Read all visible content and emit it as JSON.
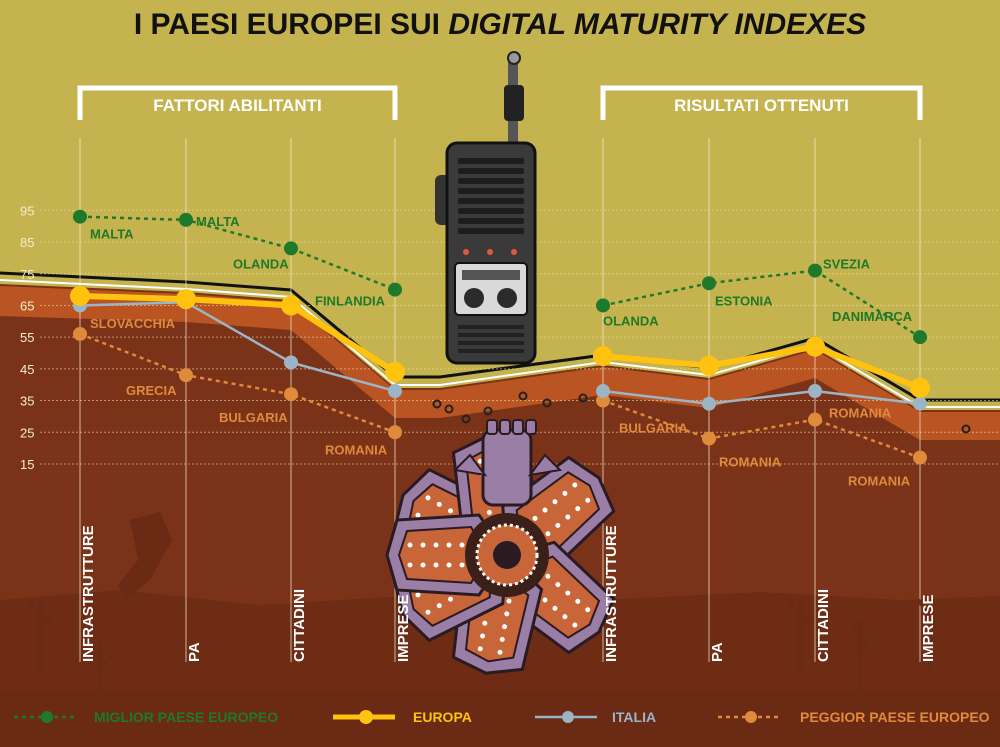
{
  "title_plain": "I PAESI EUROPEI SUI ",
  "title_italic": "DIGITAL MATURITY INDEXES",
  "colors": {
    "sky": "#c4b34e",
    "earth_dark": "#7a3319",
    "earth_mid": "#8f4120",
    "earth_band": "#c55a26",
    "best": "#1e7a2a",
    "europe": "#ffc20e",
    "italy": "#9db4c6",
    "worst": "#e08a3c",
    "bracket": "#ffffff"
  },
  "chart_data": [
    {
      "type": "line",
      "group": "FATTORI ABILITANTI",
      "categories": [
        "INFRASTRUTTURE",
        "PA",
        "CITTADINI",
        "IMPRESE"
      ],
      "yticks": [
        95,
        85,
        75,
        65,
        55,
        45,
        35,
        25,
        15
      ],
      "ylim": [
        8,
        104
      ],
      "series": [
        {
          "name": "MIGLIOR PAESE EUROPEO",
          "key": "best",
          "values": [
            93,
            92,
            83,
            70
          ],
          "labels": [
            "MALTA",
            "MALTA",
            "OLANDA",
            "FINLANDIA"
          ]
        },
        {
          "name": "EUROPA",
          "key": "europe",
          "values": [
            68,
            67,
            65,
            44
          ]
        },
        {
          "name": "ITALIA",
          "key": "italy",
          "values": [
            65,
            66,
            47,
            38
          ]
        },
        {
          "name": "PEGGIOR PAESE EUROPEO",
          "key": "worst",
          "values": [
            56,
            43,
            37,
            25
          ],
          "labels": [
            "SLOVACCHIA",
            "GRECIA",
            "BULGARIA",
            "ROMANIA"
          ]
        }
      ]
    },
    {
      "type": "line",
      "group": "RISULTATI OTTENUTI",
      "categories": [
        "INFRASTRUTTURE",
        "PA",
        "CITTADINI",
        "IMPRESE"
      ],
      "ylim": [
        8,
        104
      ],
      "series": [
        {
          "name": "MIGLIOR PAESE EUROPEO",
          "key": "best",
          "values": [
            65,
            72,
            76,
            55
          ],
          "labels": [
            "OLANDA",
            "ESTONIA",
            "SVEZIA",
            "DANIMARCA"
          ]
        },
        {
          "name": "EUROPA",
          "key": "europe",
          "values": [
            49,
            46,
            52,
            39
          ]
        },
        {
          "name": "ITALIA",
          "key": "italy",
          "values": [
            38,
            34,
            38,
            34
          ]
        },
        {
          "name": "PEGGIOR PAESE EUROPEO",
          "key": "worst",
          "values": [
            35,
            23,
            29,
            17
          ],
          "labels": [
            "BULGARIA",
            "ROMANIA",
            "ROMANIA",
            "ROMANIA"
          ]
        }
      ]
    }
  ],
  "legend": [
    {
      "key": "best",
      "label": "MIGLIOR PAESE EUROPEO"
    },
    {
      "key": "europe",
      "label": "EUROPA"
    },
    {
      "key": "italy",
      "label": "ITALIA"
    },
    {
      "key": "worst",
      "label": "PEGGIOR PAESE EUROPEO"
    }
  ],
  "legend_position": "bottom",
  "grid": true
}
